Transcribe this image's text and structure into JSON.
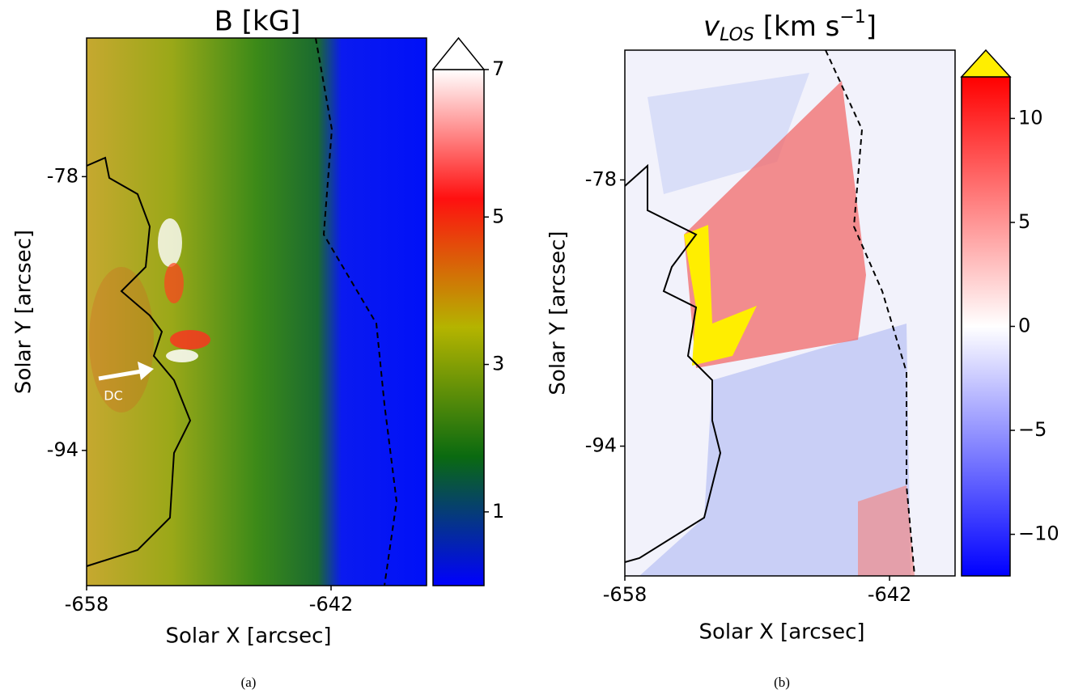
{
  "chart_data": [
    {
      "type": "heatmap",
      "title": "B [kG]",
      "xlabel": "Solar X [arcsec]",
      "ylabel": "Solar Y [arcsec]",
      "xlim": [
        -658,
        -635.75
      ],
      "ylim": [
        -101.9,
        -69.9
      ],
      "xticks": [
        -658,
        -642
      ],
      "yticks": [
        -78,
        -94
      ],
      "colorbar": {
        "lim": [
          0,
          7
        ],
        "ticks": [
          1,
          3,
          5,
          7
        ],
        "colors": [
          "#0000ff",
          "#0a6a10",
          "#b4b400",
          "#ff1010",
          "#ffffff"
        ],
        "over_color": "#ffffff"
      },
      "annotation": "DC",
      "caption": "(a)"
    },
    {
      "type": "heatmap",
      "title": {
        "main": "v",
        "sub": "LOS",
        "rest": " [km s",
        "sup": "−1",
        "end": "]"
      },
      "xlabel": "Solar X [arcsec]",
      "ylabel": "Solar Y [arcsec]",
      "xlim": [
        -658,
        -638.04
      ],
      "ylim": [
        -101.8,
        -70.2
      ],
      "xticks": [
        -658,
        -642
      ],
      "yticks": [
        -78,
        -94
      ],
      "colorbar": {
        "lim": [
          -12,
          12
        ],
        "ticks": [
          10,
          5,
          0,
          {
            "value": -5,
            "label": "−5"
          },
          {
            "value": -10,
            "label": "−10"
          }
        ],
        "colors": [
          "#0000ff",
          "#ffffff",
          "#ff0000"
        ],
        "over_color": "#ffee00"
      },
      "caption": "(b)"
    }
  ]
}
